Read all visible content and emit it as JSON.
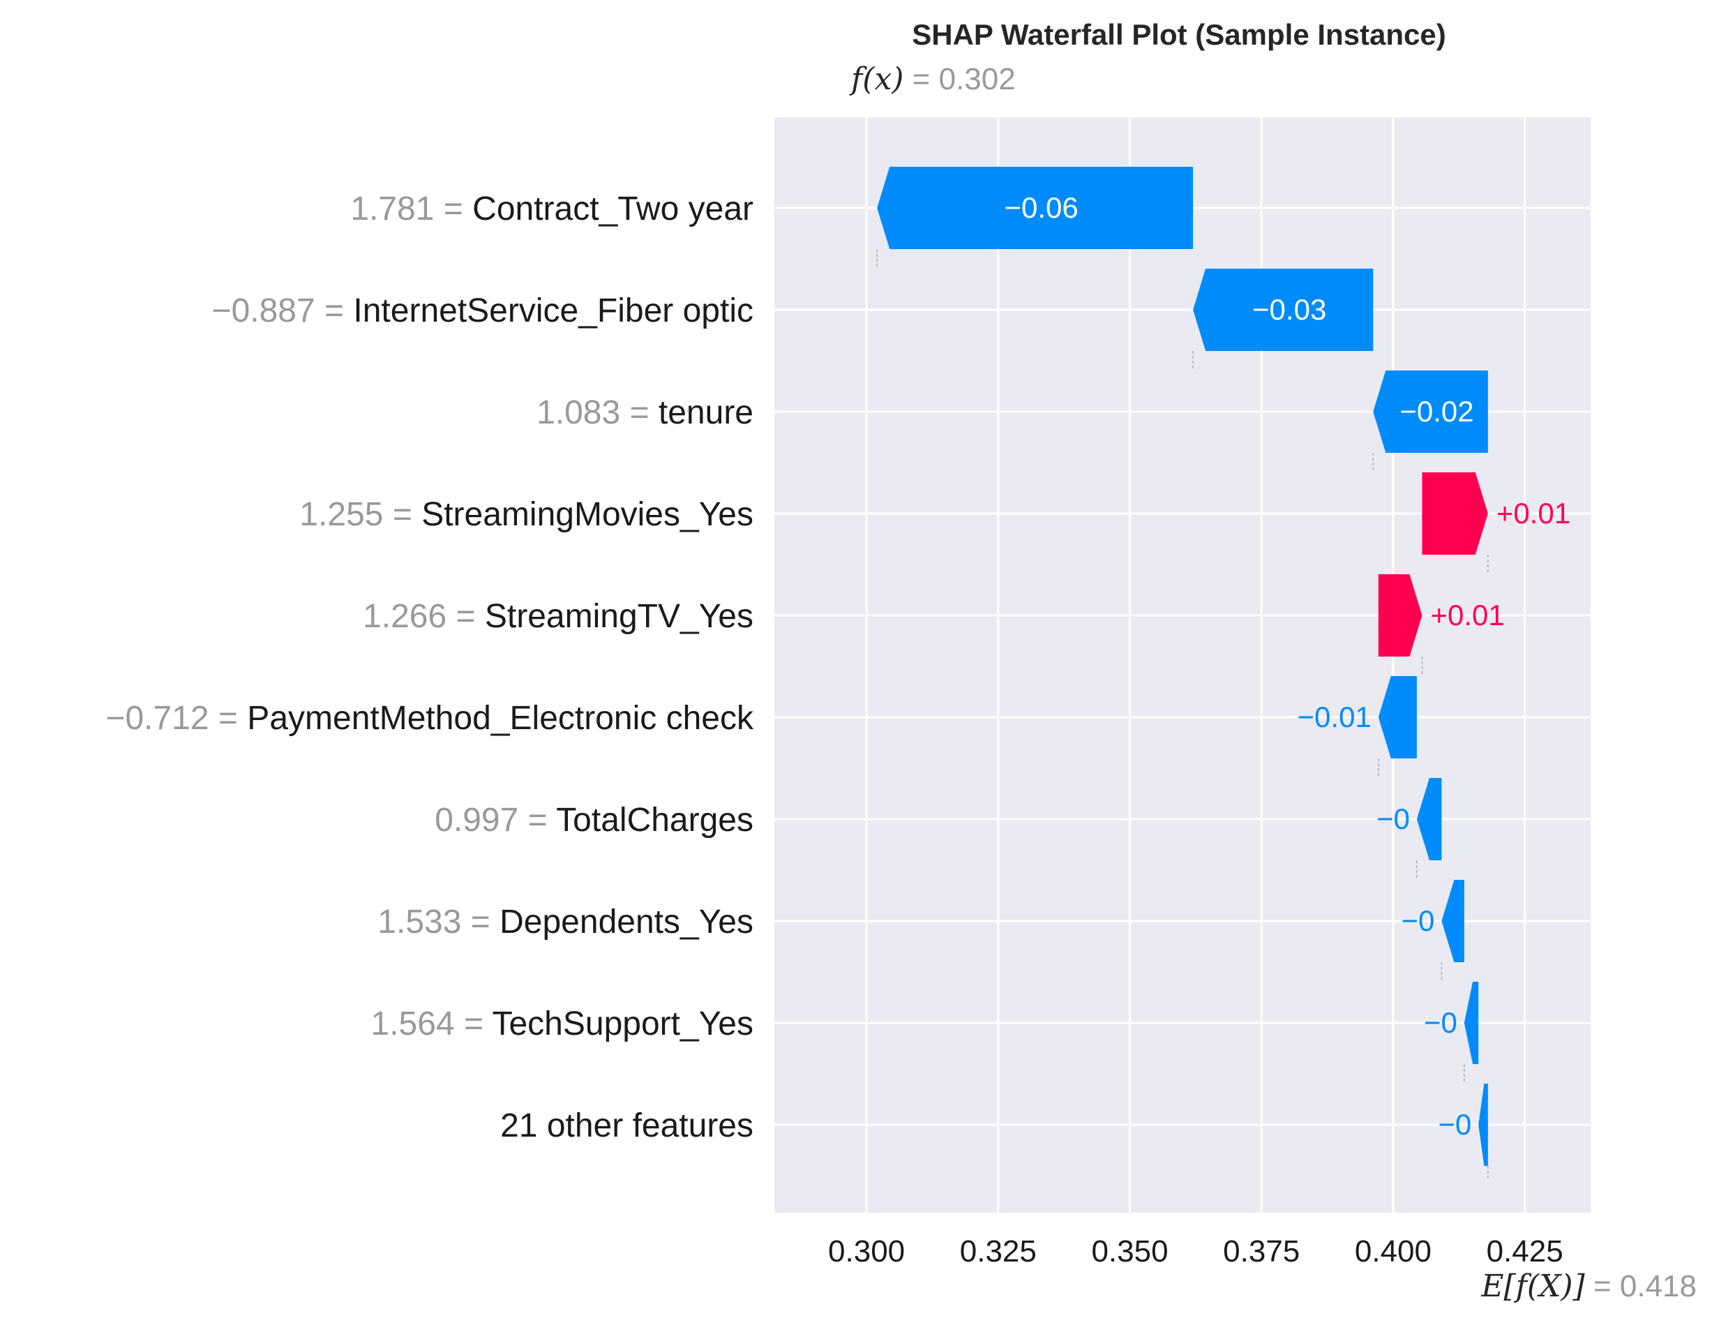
{
  "chart_data": {
    "type": "waterfall",
    "title": "SHAP Waterfall Plot (Sample Instance)",
    "fx_label": "f(x)",
    "fx_value": "0.302",
    "fx_numeric": 0.302,
    "base_label": "E[f(X)]",
    "base_value": "0.418",
    "base_numeric": 0.418,
    "xlim": [
      0.2825,
      0.4375
    ],
    "xticks": [
      0.3,
      0.325,
      0.35,
      0.375,
      0.4,
      0.425
    ],
    "xtick_labels": [
      "0.300",
      "0.325",
      "0.350",
      "0.375",
      "0.400",
      "0.425"
    ],
    "grid": true,
    "colors": {
      "negative": "#008bfb",
      "positive": "#ff0051",
      "background": "#eaeaf2",
      "grid": "#ffffff",
      "muted": "#999999"
    },
    "features": [
      {
        "value_text": "1.781",
        "name": "Contract_Two year",
        "label": "−0.06",
        "start": 0.362,
        "end": 0.302
      },
      {
        "value_text": "−0.887",
        "name": "InternetService_Fiber optic",
        "label": "−0.03",
        "start": 0.3962,
        "end": 0.362
      },
      {
        "value_text": "1.083",
        "name": "tenure",
        "label": "−0.02",
        "start": 0.418,
        "end": 0.3962
      },
      {
        "value_text": "1.255",
        "name": "StreamingMovies_Yes",
        "label": "+0.01",
        "start": 0.4055,
        "end": 0.418
      },
      {
        "value_text": "1.266",
        "name": "StreamingTV_Yes",
        "label": "+0.01",
        "start": 0.3972,
        "end": 0.4055
      },
      {
        "value_text": "−0.712",
        "name": "PaymentMethod_Electronic check",
        "label": "−0.01",
        "start": 0.4045,
        "end": 0.3972
      },
      {
        "value_text": "0.997",
        "name": "TotalCharges",
        "label": "−0",
        "start": 0.4092,
        "end": 0.4045
      },
      {
        "value_text": "1.533",
        "name": "Dependents_Yes",
        "label": "−0",
        "start": 0.4135,
        "end": 0.4092
      },
      {
        "value_text": "1.564",
        "name": "TechSupport_Yes",
        "label": "−0",
        "start": 0.4162,
        "end": 0.4135
      },
      {
        "value_text": "",
        "name": "21 other features",
        "label": "−0",
        "start": 0.418,
        "end": 0.4162
      }
    ]
  }
}
